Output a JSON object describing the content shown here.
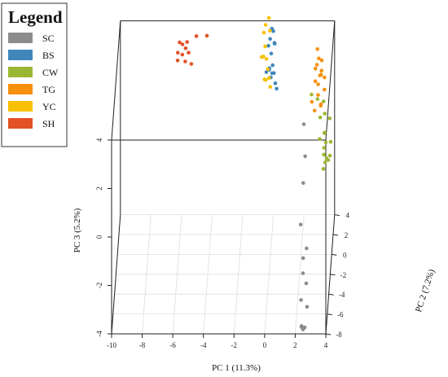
{
  "chart_data": {
    "type": "scatter",
    "subtype": "3d-scatter",
    "title": "",
    "xlabel": "PC 1 (11.3%)",
    "ylabel": "PC 2 (7.2%)",
    "zlabel": "PC 3 (5.2%)",
    "x_ticks": [
      "-10",
      "-8",
      "-6",
      "-4",
      "-2",
      "0",
      "2",
      "4"
    ],
    "y_ticks": [
      "-8",
      "-6",
      "-4",
      "-2",
      "0",
      "2",
      "4"
    ],
    "z_ticks": [
      "-4",
      "-2",
      "0",
      "2",
      "4"
    ],
    "xlim": [
      -10,
      4
    ],
    "ylim": [
      -8,
      4
    ],
    "zlim": [
      -4,
      4
    ],
    "legend": {
      "title": "Legend",
      "position": "top-left",
      "entries": [
        {
          "label": "SC",
          "color": "#8c8c8c"
        },
        {
          "label": "BS",
          "color": "#3f86bb"
        },
        {
          "label": "CW",
          "color": "#9ab734"
        },
        {
          "label": "TG",
          "color": "#f5900d"
        },
        {
          "label": "YC",
          "color": "#f7c000"
        },
        {
          "label": "SH",
          "color": "#e25225"
        }
      ]
    },
    "series": [
      {
        "name": "SC",
        "color": "#8c8c8c",
        "points": [
          [
            2.3,
            -2.5,
            2.4
          ],
          [
            2.4,
            -2.8,
            1.2
          ],
          [
            2.3,
            -3.3,
            0.3
          ],
          [
            2.2,
            -4.8,
            -0.8
          ],
          [
            2.6,
            -5.0,
            -1.7
          ],
          [
            2.4,
            -5.5,
            -1.9
          ],
          [
            2.4,
            -5.8,
            -2.4
          ],
          [
            2.6,
            -5.6,
            -2.9
          ],
          [
            2.3,
            -6.3,
            -3.3
          ],
          [
            2.7,
            -6.5,
            -3.5
          ],
          [
            2.4,
            -7.7,
            -3.8
          ],
          [
            2.5,
            -7.8,
            -3.9
          ],
          [
            2.6,
            -7.6,
            -3.9
          ],
          [
            2.4,
            -7.8,
            -3.8
          ]
        ]
      },
      {
        "name": "BS",
        "color": "#3f86bb",
        "points": [
          [
            0.1,
            -0.2,
            5.4
          ],
          [
            0.0,
            -0.5,
            5.1
          ],
          [
            0.2,
            -0.2,
            5.3
          ],
          [
            -0.1,
            -0.7,
            4.9
          ],
          [
            0.3,
            -0.5,
            4.9
          ],
          [
            0.1,
            -1.0,
            4.7
          ],
          [
            0.2,
            -1.2,
            4.3
          ],
          [
            0.0,
            -1.5,
            4.3
          ],
          [
            0.3,
            -1.5,
            4.1
          ],
          [
            0.4,
            -1.8,
            3.8
          ],
          [
            -0.2,
            -1.4,
            4.1
          ],
          [
            0.1,
            -1.7,
            4.0
          ],
          [
            0.2,
            -2.0,
            4.3
          ],
          [
            0.5,
            -2.1,
            3.7
          ],
          [
            0.0,
            -1.9,
            4.4
          ],
          [
            0.3,
            -0.9,
            5.1
          ]
        ]
      },
      {
        "name": "YC",
        "color": "#f7c000",
        "points": [
          [
            -0.3,
            -0.3,
            5.6
          ],
          [
            -0.1,
            -0.1,
            5.8
          ],
          [
            -0.4,
            -0.6,
            5.4
          ],
          [
            0.0,
            -0.9,
            5.6
          ],
          [
            -0.3,
            -1.0,
            5.0
          ],
          [
            -0.4,
            -1.3,
            4.7
          ],
          [
            -0.5,
            -1.6,
            4.8
          ],
          [
            -0.2,
            -1.3,
            4.6
          ],
          [
            -0.1,
            -1.6,
            4.3
          ],
          [
            -0.3,
            -1.9,
            4.0
          ],
          [
            0.0,
            -2.0,
            4.1
          ],
          [
            -0.2,
            -2.2,
            4.1
          ],
          [
            0.1,
            -2.4,
            3.9
          ]
        ]
      },
      {
        "name": "TG",
        "color": "#f5900d",
        "points": [
          [
            3.0,
            1.4,
            3.9
          ],
          [
            3.1,
            1.2,
            3.6
          ],
          [
            3.0,
            0.8,
            3.5
          ],
          [
            3.3,
            1.0,
            3.6
          ],
          [
            2.9,
            0.9,
            3.3
          ],
          [
            3.2,
            0.7,
            3.1
          ],
          [
            3.3,
            0.7,
            3.3
          ],
          [
            3.3,
            0.3,
            3.3
          ],
          [
            3.5,
            0.5,
            3.1
          ],
          [
            2.9,
            0.6,
            2.9
          ],
          [
            3.1,
            0.3,
            2.9
          ],
          [
            3.5,
            0.5,
            2.6
          ],
          [
            3.1,
            0.2,
            2.5
          ],
          [
            2.7,
            0.0,
            2.3
          ],
          [
            3.3,
            0.0,
            2.2
          ],
          [
            3.3,
            -0.4,
            2.3
          ],
          [
            2.9,
            -0.4,
            2.1
          ]
        ]
      },
      {
        "name": "CW",
        "color": "#9ab734",
        "points": [
          [
            2.6,
            1.7,
            1.9
          ],
          [
            3.0,
            1.5,
            1.8
          ],
          [
            3.4,
            1.5,
            1.7
          ],
          [
            3.5,
            1.0,
            1.4
          ],
          [
            3.2,
            1.1,
            1.2
          ],
          [
            3.8,
            1.5,
            1.0
          ],
          [
            3.5,
            0.8,
            0.7
          ],
          [
            3.5,
            0.5,
            0.8
          ],
          [
            3.2,
            0.4,
            0.6
          ],
          [
            3.6,
            0.3,
            0.5
          ],
          [
            3.9,
            0.6,
            0.4
          ],
          [
            3.5,
            0.0,
            0.4
          ],
          [
            3.5,
            -0.2,
            0.2
          ],
          [
            3.8,
            -0.5,
            0.1
          ],
          [
            3.7,
            -0.8,
            0.3
          ],
          [
            3.9,
            -0.3,
            0.2
          ],
          [
            3.6,
            -0.5,
            0.0
          ],
          [
            3.5,
            -0.9,
            -0.1
          ]
        ]
      },
      {
        "name": "SH",
        "color": "#e25225",
        "points": [
          [
            -5.5,
            -5.2,
            6.8
          ],
          [
            -5.7,
            -5.0,
            6.8
          ],
          [
            -5.2,
            -5.2,
            6.9
          ],
          [
            -5.8,
            -5.3,
            6.5
          ],
          [
            -5.5,
            -5.5,
            6.5
          ],
          [
            -5.1,
            -5.3,
            6.5
          ],
          [
            -5.3,
            -5.7,
            6.3
          ],
          [
            -5.8,
            -5.6,
            6.3
          ],
          [
            -4.9,
            -5.7,
            6.2
          ],
          [
            -5.3,
            -5.1,
            6.6
          ],
          [
            -4.6,
            -5.1,
            7.1
          ],
          [
            -3.9,
            -5.3,
            7.2
          ]
        ]
      }
    ]
  }
}
